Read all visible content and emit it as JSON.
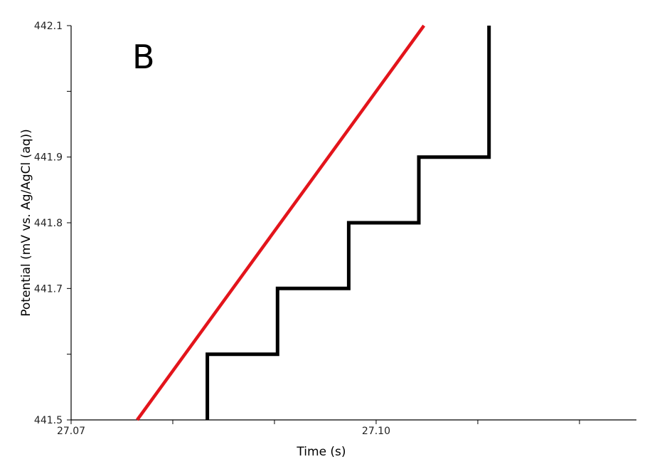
{
  "chart_data": {
    "type": "line",
    "panel_label": "B",
    "xlabel": "Time (s)",
    "ylabel": "Potential (mV vs. Ag/AgCl (aq))",
    "xlim": [
      27.07,
      27.1256
    ],
    "ylim": [
      441.5,
      442.1
    ],
    "x_ticks": [
      27.07,
      27.08,
      27.09,
      27.1,
      27.11,
      27.12
    ],
    "x_tick_labels": [
      {
        "value": 27.07,
        "label": "27.07"
      },
      {
        "value": 27.1,
        "label": "27.10"
      }
    ],
    "y_ticks": [
      441.5,
      441.6,
      441.7,
      441.8,
      441.9,
      442.0,
      442.1
    ],
    "y_tick_labels": [
      {
        "value": 441.5,
        "label": "441.5"
      },
      {
        "value": 441.7,
        "label": "441.7"
      },
      {
        "value": 441.8,
        "label": "441.8"
      },
      {
        "value": 441.9,
        "label": "441.9"
      },
      {
        "value": 442.1,
        "label": "442.1"
      }
    ],
    "grid": false,
    "series": [
      {
        "color": "#e3141b",
        "line_style": "straight",
        "x": [
          27.0765,
          27.1047
        ],
        "y": [
          441.5,
          442.1
        ]
      },
      {
        "color": "#000000",
        "line_style": "step",
        "x": [
          27.0834,
          27.0834,
          27.0903,
          27.0903,
          27.0973,
          27.0973,
          27.1042,
          27.1042,
          27.1111,
          27.1111
        ],
        "y": [
          441.5,
          441.6,
          441.6,
          441.7,
          441.7,
          441.8,
          441.8,
          441.9,
          441.9,
          442.1
        ]
      }
    ]
  }
}
